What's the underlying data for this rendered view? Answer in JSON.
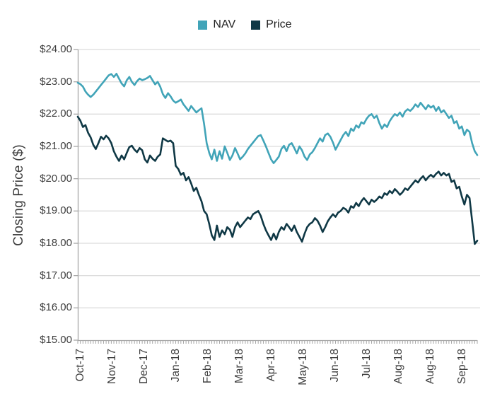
{
  "chart_data": {
    "type": "line",
    "title": "",
    "xlabel": "",
    "ylabel": "Closing Price ($)",
    "ylim": [
      15,
      24
    ],
    "ytick_step": 1,
    "ytick_labels": [
      "$24.00",
      "$23.00",
      "$22.00",
      "$21.00",
      "$20.00",
      "$19.00",
      "$18.00",
      "$17.00",
      "$16.00",
      "$15.00"
    ],
    "x_tick_labels": [
      "Oct-17",
      "Nov-17",
      "Dec-17",
      "Jan-18",
      "Feb-18",
      "Mar-18",
      "Apr-18",
      "May-18",
      "Jun-18",
      "Jul-18",
      "Aug-18",
      "Aug-18",
      "Sep-18"
    ],
    "grid": "horizontal",
    "legend_position": "top-center",
    "series": [
      {
        "name": "NAV",
        "color": "#41A4B8",
        "values": [
          22.97,
          22.93,
          22.85,
          22.7,
          22.6,
          22.53,
          22.6,
          22.7,
          22.8,
          22.9,
          23.0,
          23.1,
          23.2,
          23.24,
          23.15,
          23.25,
          23.1,
          22.95,
          22.86,
          23.05,
          23.15,
          23.0,
          22.9,
          23.02,
          23.1,
          23.05,
          23.08,
          23.12,
          23.18,
          23.05,
          22.92,
          23.0,
          22.85,
          22.62,
          22.5,
          22.65,
          22.55,
          22.42,
          22.35,
          22.4,
          22.45,
          22.3,
          22.2,
          22.1,
          22.25,
          22.15,
          22.05,
          22.12,
          22.18,
          21.7,
          21.1,
          20.8,
          20.6,
          20.9,
          20.55,
          20.85,
          20.62,
          21.0,
          20.8,
          20.58,
          20.72,
          20.95,
          20.78,
          20.6,
          20.68,
          20.78,
          20.92,
          21.02,
          21.12,
          21.22,
          21.32,
          21.35,
          21.18,
          21.0,
          20.8,
          20.6,
          20.48,
          20.58,
          20.68,
          20.92,
          21.02,
          20.85,
          21.05,
          21.1,
          20.95,
          20.78,
          21.0,
          20.88,
          20.68,
          20.58,
          20.75,
          20.82,
          20.95,
          21.1,
          21.25,
          21.15,
          21.35,
          21.4,
          21.3,
          21.12,
          20.9,
          21.05,
          21.2,
          21.35,
          21.45,
          21.32,
          21.55,
          21.48,
          21.65,
          21.58,
          21.75,
          21.7,
          21.85,
          21.95,
          22.0,
          21.88,
          21.95,
          21.72,
          21.55,
          21.68,
          21.6,
          21.78,
          21.9,
          22.0,
          21.95,
          22.05,
          21.92,
          22.08,
          22.15,
          22.1,
          22.18,
          22.3,
          22.22,
          22.35,
          22.25,
          22.15,
          22.28,
          22.2,
          22.26,
          22.1,
          22.22,
          22.05,
          22.12,
          22.0,
          21.88,
          21.95,
          21.72,
          21.78,
          21.55,
          21.62,
          21.35,
          21.52,
          21.45,
          21.1,
          20.85,
          20.73
        ]
      },
      {
        "name": "Price",
        "color": "#0F3845",
        "values": [
          21.92,
          21.8,
          21.6,
          21.66,
          21.42,
          21.28,
          21.05,
          20.92,
          21.1,
          21.3,
          21.22,
          21.33,
          21.25,
          21.1,
          20.85,
          20.68,
          20.55,
          20.72,
          20.6,
          20.8,
          20.98,
          21.02,
          20.9,
          20.82,
          20.95,
          20.88,
          20.6,
          20.5,
          20.72,
          20.62,
          20.55,
          20.68,
          20.75,
          21.25,
          21.2,
          21.15,
          21.18,
          21.1,
          20.4,
          20.3,
          20.12,
          20.18,
          19.95,
          20.05,
          19.85,
          19.62,
          19.72,
          19.5,
          19.3,
          19.0,
          18.9,
          18.6,
          18.25,
          18.1,
          18.55,
          18.2,
          18.4,
          18.28,
          18.5,
          18.42,
          18.2,
          18.5,
          18.65,
          18.5,
          18.6,
          18.7,
          18.8,
          18.75,
          18.9,
          18.95,
          19.0,
          18.85,
          18.6,
          18.4,
          18.25,
          18.1,
          18.3,
          18.12,
          18.35,
          18.5,
          18.42,
          18.6,
          18.5,
          18.38,
          18.55,
          18.35,
          18.2,
          18.05,
          18.3,
          18.5,
          18.6,
          18.65,
          18.78,
          18.7,
          18.55,
          18.35,
          18.5,
          18.68,
          18.8,
          18.9,
          18.82,
          18.95,
          19.0,
          19.1,
          19.05,
          18.95,
          19.15,
          19.1,
          19.25,
          19.15,
          19.3,
          19.4,
          19.3,
          19.2,
          19.35,
          19.28,
          19.35,
          19.45,
          19.4,
          19.55,
          19.5,
          19.62,
          19.55,
          19.68,
          19.6,
          19.5,
          19.58,
          19.7,
          19.65,
          19.75,
          19.85,
          19.95,
          19.88,
          20.0,
          20.08,
          19.95,
          20.05,
          20.12,
          20.05,
          20.15,
          20.22,
          20.1,
          20.18,
          20.1,
          20.15,
          19.9,
          19.95,
          19.7,
          19.75,
          19.45,
          19.2,
          19.5,
          19.4,
          18.7,
          17.98,
          18.08
        ]
      }
    ]
  },
  "colors": {
    "grid": "#DCDCDC",
    "axis": "#A6A6A6",
    "tick_text": "#3F3F3F",
    "background": "#FFFFFF"
  }
}
